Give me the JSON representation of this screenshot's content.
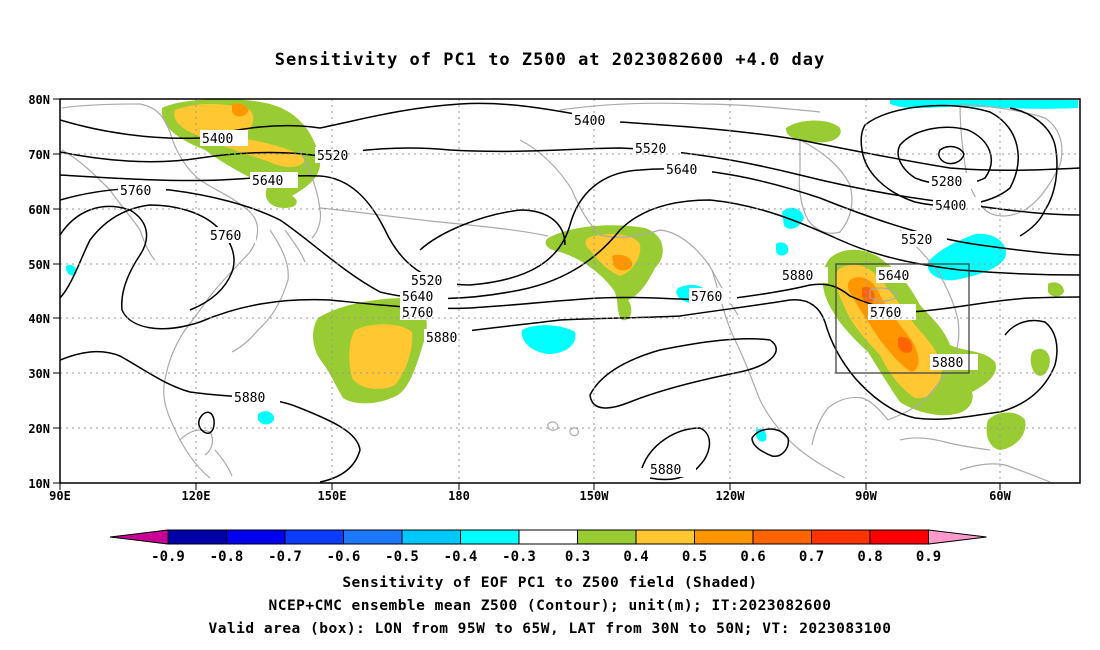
{
  "title": "Sensitivity of PC1 to Z500 at 2023082600 +4.0 day",
  "map": {
    "lat_labels": [
      "80N",
      "70N",
      "60N",
      "50N",
      "40N",
      "30N",
      "20N",
      "10N"
    ],
    "lon_labels": [
      "90E",
      "120E",
      "150E",
      "180",
      "150W",
      "120W",
      "90W",
      "60W"
    ],
    "contour_labels": [
      "5400",
      "5520",
      "5640",
      "5760",
      "5760",
      "5400",
      "5520",
      "5640",
      "5880",
      "5280",
      "5400",
      "5520",
      "5640",
      "5760",
      "5880",
      "5520",
      "5640",
      "5760",
      "5880",
      "5760",
      "5880",
      "5880"
    ],
    "valid_box": {
      "lon_range": [
        "95W",
        "65W"
      ],
      "lat_range": [
        "30N",
        "50N"
      ]
    }
  },
  "colorbar": {
    "labels": [
      "-0.9",
      "-0.8",
      "-0.7",
      "-0.6",
      "-0.5",
      "-0.4",
      "-0.3",
      "0.3",
      "0.4",
      "0.5",
      "0.6",
      "0.7",
      "0.8",
      "0.9"
    ],
    "colors": [
      "#0000a8",
      "#0000ee",
      "#0a3cff",
      "#1e78ff",
      "#00c8ff",
      "#00ffff",
      "#ffffff",
      "#99cc33",
      "#ffc832",
      "#ff9600",
      "#ff6400",
      "#ff3200",
      "#ff0000"
    ],
    "end_low": "#c80096",
    "end_high": "#ff99cc"
  },
  "captions": {
    "line1": "Sensitivity of EOF PC1 to Z500 field (Shaded)",
    "line2": "NCEP+CMC ensemble mean Z500 (Contour); unit(m); IT:2023082600",
    "line3": "Valid area (box): LON from 95W to 65W, LAT from 30N to 50N; VT: 2023083100"
  }
}
